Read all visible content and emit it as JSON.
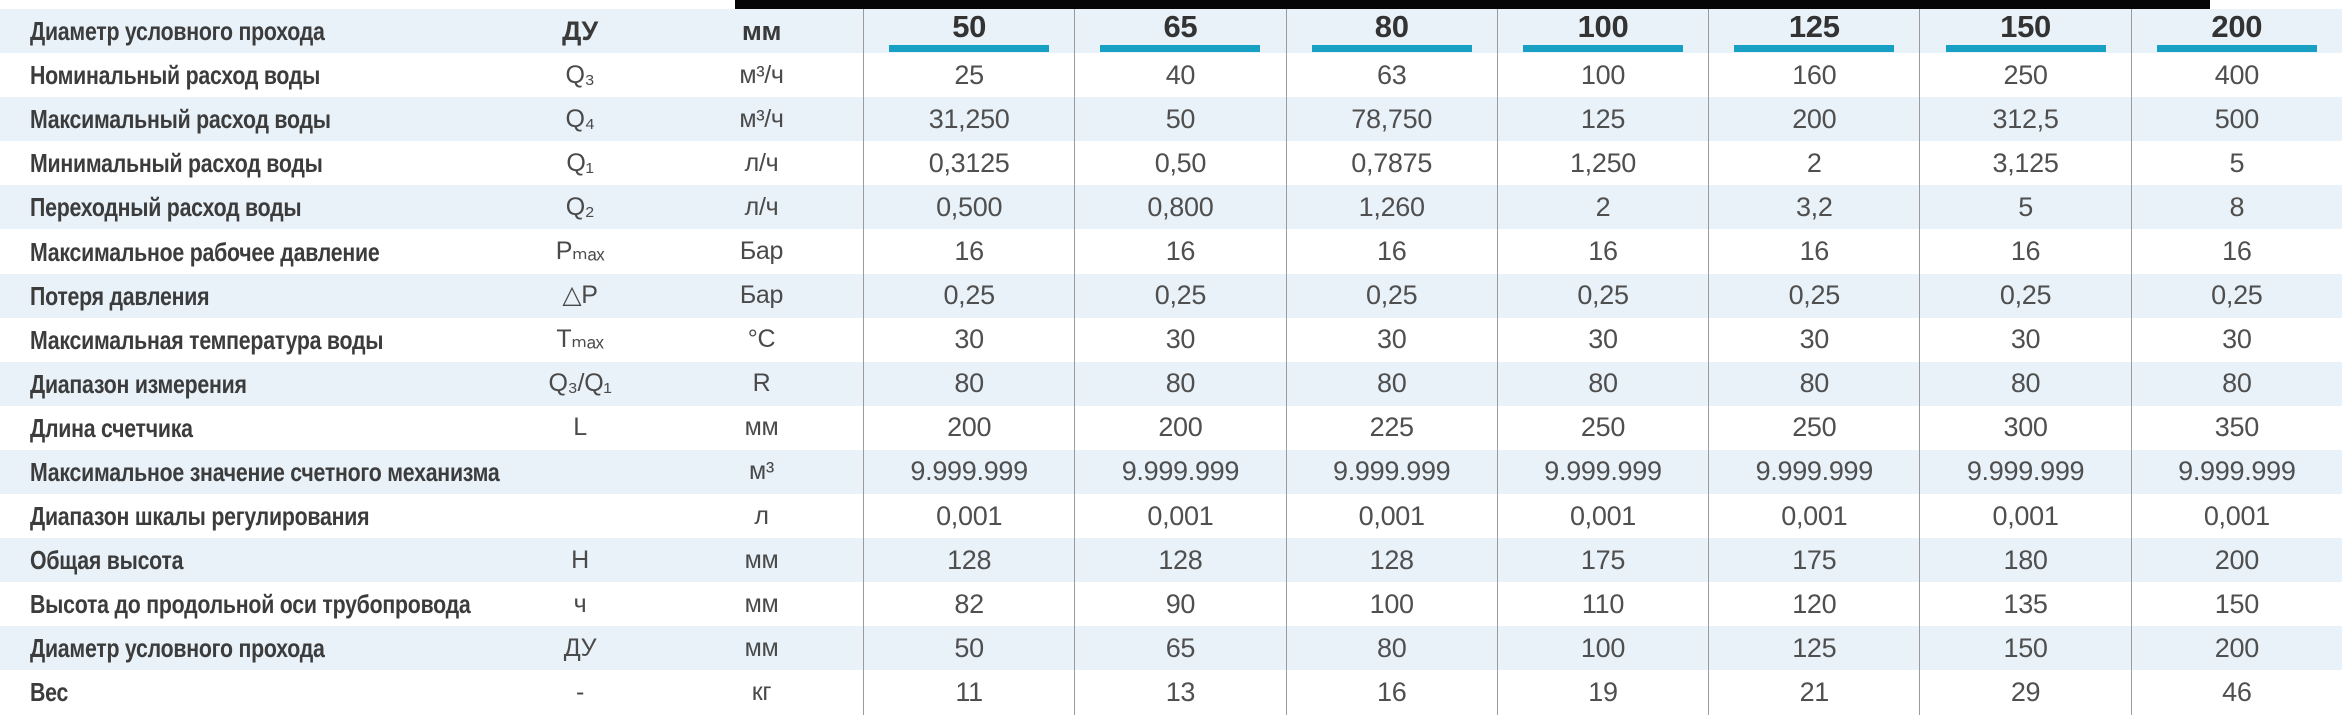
{
  "table": {
    "accent_color": "#18a0c4",
    "row_alt_color": "#e9f2f9",
    "grid_line_color": "#9b9b9b",
    "header": {
      "param": "Диаметр условного прохода",
      "symbol": "ДУ",
      "unit": "мм",
      "values": [
        "50",
        "65",
        "80",
        "100",
        "125",
        "150",
        "200"
      ]
    },
    "rows": [
      {
        "param": "Номинальный расход воды",
        "symbol": "Q₃",
        "unit": "м³/ч",
        "values": [
          "25",
          "40",
          "63",
          "100",
          "160",
          "250",
          "400"
        ]
      },
      {
        "param": "Максимальный расход воды",
        "symbol": "Q₄",
        "unit": "м³/ч",
        "values": [
          "31,250",
          "50",
          "78,750",
          "125",
          "200",
          "312,5",
          "500"
        ]
      },
      {
        "param": "Минимальный расход воды",
        "symbol": "Q₁",
        "unit": "л/ч",
        "values": [
          "0,3125",
          "0,50",
          "0,7875",
          "1,250",
          "2",
          "3,125",
          "5"
        ]
      },
      {
        "param": "Переходный расход воды",
        "symbol": "Q₂",
        "unit": "л/ч",
        "values": [
          "0,500",
          "0,800",
          "1,260",
          "2",
          "3,2",
          "5",
          "8"
        ]
      },
      {
        "param": "Максимальное рабочее давление",
        "symbol": "Pₘₐₓ",
        "unit": "Бар",
        "values": [
          "16",
          "16",
          "16",
          "16",
          "16",
          "16",
          "16"
        ]
      },
      {
        "param": "Потеря давления",
        "symbol": "△P",
        "unit": "Бар",
        "values": [
          "0,25",
          "0,25",
          "0,25",
          "0,25",
          "0,25",
          "0,25",
          "0,25"
        ]
      },
      {
        "param": "Максимальная температура воды",
        "symbol": "Tₘₐₓ",
        "unit": "°C",
        "values": [
          "30",
          "30",
          "30",
          "30",
          "30",
          "30",
          "30"
        ]
      },
      {
        "param": "Диапазон измерения",
        "symbol": "Q₃/Q₁",
        "unit": "R",
        "values": [
          "80",
          "80",
          "80",
          "80",
          "80",
          "80",
          "80"
        ]
      },
      {
        "param": "Длина счетчика",
        "symbol": "L",
        "unit": "мм",
        "values": [
          "200",
          "200",
          "225",
          "250",
          "250",
          "300",
          "350"
        ]
      },
      {
        "param": "Максимальное значение счетного механизма",
        "symbol": "",
        "unit": "м³",
        "values": [
          "9.999.999",
          "9.999.999",
          "9.999.999",
          "9.999.999",
          "9.999.999",
          "9.999.999",
          "9.999.999"
        ]
      },
      {
        "param": "Диапазон шкалы регулирования",
        "symbol": "",
        "unit": "л",
        "values": [
          "0,001",
          "0,001",
          "0,001",
          "0,001",
          "0,001",
          "0,001",
          "0,001"
        ]
      },
      {
        "param": "Общая высота",
        "symbol": "H",
        "unit": "мм",
        "values": [
          "128",
          "128",
          "128",
          "175",
          "175",
          "180",
          "200"
        ]
      },
      {
        "param": "Высота до продольной оси трубопровода",
        "symbol": "ч",
        "unit": "мм",
        "values": [
          "82",
          "90",
          "100",
          "110",
          "120",
          "135",
          "150"
        ]
      },
      {
        "param": "Диаметр условного прохода",
        "symbol": "ДУ",
        "unit": "мм",
        "values": [
          "50",
          "65",
          "80",
          "100",
          "125",
          "150",
          "200"
        ]
      },
      {
        "param": "Вес",
        "symbol": "-",
        "unit": "кг",
        "values": [
          "11",
          "13",
          "16",
          "19",
          "21",
          "29",
          "46"
        ]
      }
    ]
  }
}
